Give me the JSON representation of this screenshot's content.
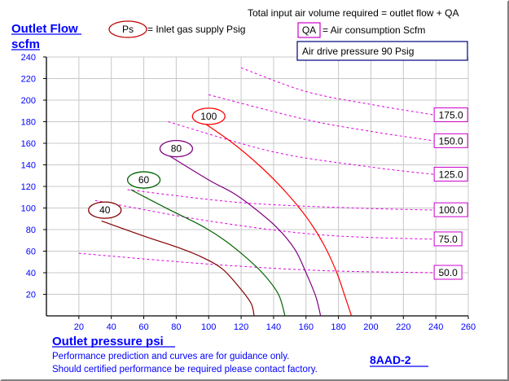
{
  "header": {
    "total_note": "Total input air volume required = outlet flow + QA",
    "ps_badge": "Ps",
    "ps_desc": "= Inlet gas supply  Psig",
    "qa_badge": "QA",
    "qa_desc": "= Air consumption  Scfm",
    "air_drive": "Air drive pressure  90 Psig"
  },
  "footer": {
    "note_line1": "Performance prediction and curves are for guidance only.",
    "note_line2": "Should certified performance be required please contact factory.",
    "model": "8AAD-2"
  },
  "chart_data": {
    "type": "line",
    "ylabel_line1": "Outlet Flow",
    "ylabel_line2": "scfm",
    "xlabel": "Outlet pressure   psi",
    "xlim": [
      0,
      260
    ],
    "ylim": [
      0,
      240
    ],
    "x_ticks": [
      20,
      40,
      60,
      80,
      100,
      120,
      140,
      160,
      180,
      200,
      220,
      240,
      260
    ],
    "y_ticks": [
      20,
      40,
      60,
      80,
      100,
      120,
      140,
      160,
      180,
      200,
      220,
      240
    ],
    "grid": true,
    "series": [
      {
        "name": "40",
        "color": "#800000",
        "label_at": [
          32,
          98
        ],
        "points": [
          [
            34,
            88
          ],
          [
            60,
            74
          ],
          [
            80,
            64
          ],
          [
            95,
            55
          ],
          [
            108,
            44
          ],
          [
            118,
            28
          ],
          [
            126,
            12
          ],
          [
            128,
            0
          ]
        ]
      },
      {
        "name": "60",
        "color": "#006400",
        "label_at": [
          56,
          126
        ],
        "points": [
          [
            52,
            117
          ],
          [
            75,
            99
          ],
          [
            95,
            84
          ],
          [
            108,
            72
          ],
          [
            120,
            58
          ],
          [
            133,
            40
          ],
          [
            143,
            20
          ],
          [
            147,
            0
          ]
        ]
      },
      {
        "name": "80",
        "color": "#800080",
        "label_at": [
          76,
          155
        ],
        "points": [
          [
            74,
            150
          ],
          [
            100,
            126
          ],
          [
            115,
            114
          ],
          [
            128,
            100
          ],
          [
            142,
            82
          ],
          [
            153,
            62
          ],
          [
            160,
            40
          ],
          [
            166,
            18
          ],
          [
            169,
            0
          ]
        ]
      },
      {
        "name": "100",
        "color": "#ff0000",
        "label_at": [
          96,
          185
        ],
        "points": [
          [
            96,
            180
          ],
          [
            115,
            160
          ],
          [
            133,
            137
          ],
          [
            148,
            114
          ],
          [
            161,
            90
          ],
          [
            171,
            66
          ],
          [
            179,
            40
          ],
          [
            184,
            18
          ],
          [
            188,
            0
          ]
        ]
      }
    ],
    "air_consumption_lines": [
      {
        "label": "175.0",
        "points": [
          [
            120,
            230
          ],
          [
            160,
            208
          ],
          [
            200,
            196
          ],
          [
            240,
            186
          ]
        ]
      },
      {
        "label": "150.0",
        "points": [
          [
            100,
            205
          ],
          [
            160,
            182
          ],
          [
            200,
            171
          ],
          [
            240,
            162
          ]
        ]
      },
      {
        "label": "125.0",
        "points": [
          [
            75,
            180
          ],
          [
            140,
            152
          ],
          [
            200,
            138
          ],
          [
            240,
            131
          ]
        ]
      },
      {
        "label": "100.0",
        "points": [
          [
            50,
            117
          ],
          [
            120,
            105
          ],
          [
            190,
            100
          ],
          [
            240,
            98
          ]
        ]
      },
      {
        "label": "75.0",
        "points": [
          [
            30,
            107
          ],
          [
            100,
            88
          ],
          [
            170,
            75
          ],
          [
            240,
            71
          ]
        ]
      },
      {
        "label": "50.0",
        "points": [
          [
            20,
            58
          ],
          [
            100,
            48
          ],
          [
            170,
            42
          ],
          [
            240,
            40
          ]
        ]
      }
    ]
  }
}
